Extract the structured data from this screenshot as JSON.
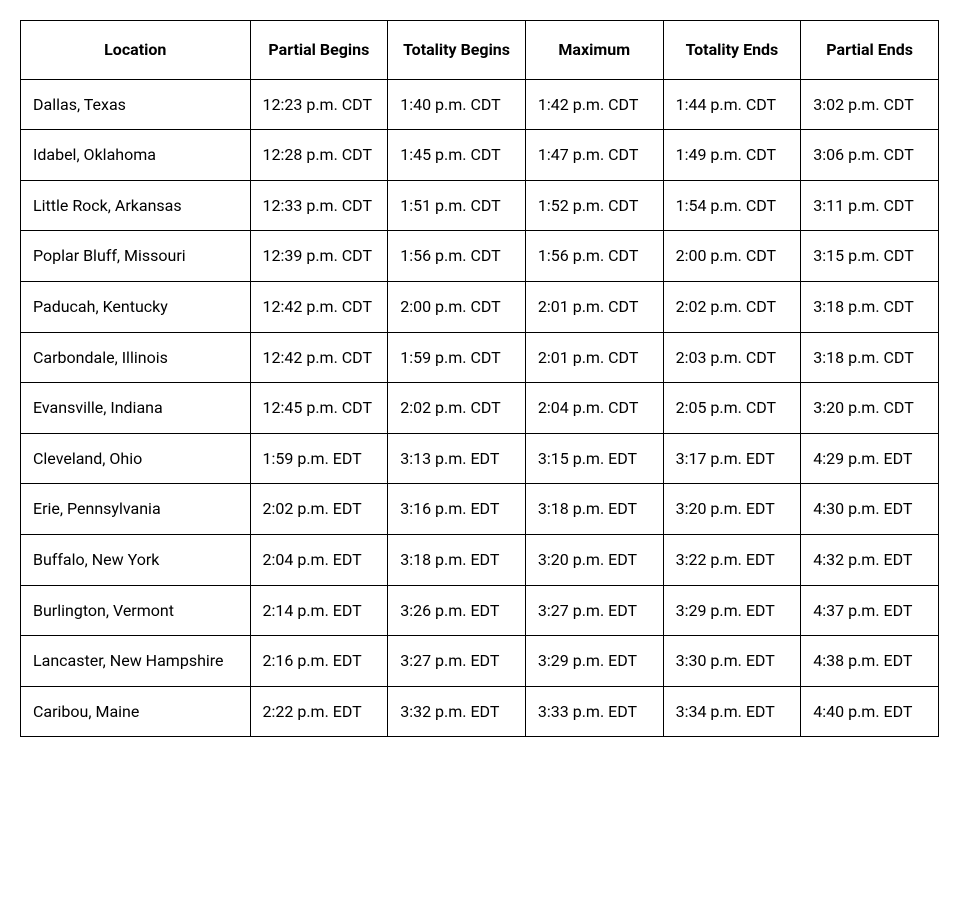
{
  "table": {
    "type": "table",
    "background_color": "#ffffff",
    "border_color": "#000000",
    "text_color": "#000000",
    "header_fontsize": 16,
    "cell_fontsize": 16,
    "header_font_weight": 700,
    "cell_font_weight": 400,
    "cell_padding": 14,
    "column_widths_pct": [
      25,
      15,
      15,
      15,
      15,
      15
    ],
    "header_align": "center",
    "cell_align": "left",
    "columns": [
      "Location",
      "Partial Begins",
      "Totality Begins",
      "Maximum",
      "Totality Ends",
      "Partial Ends"
    ],
    "rows": [
      [
        "Dallas, Texas",
        "12:23 p.m. CDT",
        "1:40 p.m. CDT",
        "1:42 p.m. CDT",
        "1:44 p.m. CDT",
        "3:02 p.m. CDT"
      ],
      [
        "Idabel, Oklahoma",
        "12:28 p.m. CDT",
        "1:45 p.m. CDT",
        "1:47 p.m. CDT",
        "1:49 p.m. CDT",
        "3:06 p.m. CDT"
      ],
      [
        "Little Rock, Arkansas",
        "12:33 p.m. CDT",
        "1:51 p.m. CDT",
        "1:52 p.m. CDT",
        "1:54 p.m. CDT",
        "3:11 p.m. CDT"
      ],
      [
        "Poplar Bluff, Missouri",
        "12:39 p.m. CDT",
        "1:56 p.m. CDT",
        "1:56 p.m. CDT",
        "2:00 p.m. CDT",
        "3:15 p.m. CDT"
      ],
      [
        "Paducah, Kentucky",
        "12:42 p.m. CDT",
        "2:00 p.m. CDT",
        "2:01 p.m. CDT",
        "2:02 p.m. CDT",
        "3:18 p.m. CDT"
      ],
      [
        "Carbondale, Illinois",
        "12:42 p.m. CDT",
        "1:59 p.m. CDT",
        "2:01 p.m. CDT",
        "2:03 p.m. CDT",
        "3:18 p.m. CDT"
      ],
      [
        "Evansville, Indiana",
        "12:45 p.m. CDT",
        "2:02 p.m. CDT",
        "2:04 p.m. CDT",
        "2:05 p.m. CDT",
        "3:20 p.m. CDT"
      ],
      [
        "Cleveland, Ohio",
        "1:59 p.m. EDT",
        "3:13 p.m. EDT",
        "3:15 p.m. EDT",
        "3:17 p.m. EDT",
        "4:29 p.m. EDT"
      ],
      [
        "Erie, Pennsylvania",
        "2:02 p.m. EDT",
        "3:16 p.m. EDT",
        "3:18 p.m. EDT",
        "3:20 p.m. EDT",
        "4:30 p.m. EDT"
      ],
      [
        "Buffalo, New York",
        "2:04 p.m. EDT",
        "3:18 p.m. EDT",
        "3:20 p.m. EDT",
        "3:22 p.m. EDT",
        "4:32 p.m. EDT"
      ],
      [
        "Burlington, Vermont",
        "2:14 p.m. EDT",
        "3:26 p.m. EDT",
        "3:27 p.m. EDT",
        "3:29 p.m. EDT",
        "4:37 p.m. EDT"
      ],
      [
        "Lancaster, New Hampshire",
        "2:16 p.m. EDT",
        "3:27 p.m. EDT",
        "3:29 p.m. EDT",
        "3:30 p.m. EDT",
        "4:38 p.m. EDT"
      ],
      [
        "Caribou, Maine",
        "2:22 p.m. EDT",
        "3:32 p.m. EDT",
        "3:33 p.m. EDT",
        "3:34 p.m. EDT",
        "4:40 p.m. EDT"
      ]
    ]
  }
}
